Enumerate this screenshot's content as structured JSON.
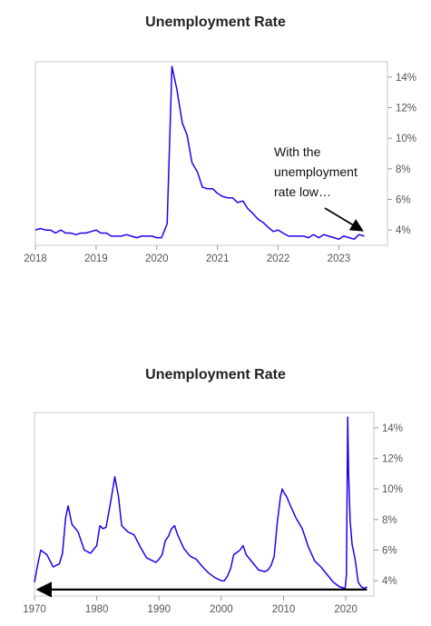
{
  "chart_data": [
    {
      "type": "line",
      "title": "Unemployment Rate",
      "xlabel": "",
      "ylabel": "",
      "x_ticks": [
        "2018",
        "2019",
        "2020",
        "2021",
        "2022",
        "2023"
      ],
      "y_ticks": [
        "4%",
        "6%",
        "8%",
        "10%",
        "12%",
        "14%"
      ],
      "xlim": [
        2018.0,
        2023.8
      ],
      "ylim": [
        3.0,
        15.0
      ],
      "grid": false,
      "line_color": "#2200ee",
      "annotation": {
        "lines": [
          "With the",
          "unemployment",
          "rate low…"
        ],
        "arrow_to": [
          2023.42,
          3.6
        ]
      },
      "series": [
        {
          "x": [
            2018.0,
            2018.08,
            2018.17,
            2018.25,
            2018.33,
            2018.42,
            2018.5,
            2018.58,
            2018.67,
            2018.75,
            2018.83,
            2018.92,
            2019.0,
            2019.08,
            2019.17,
            2019.25,
            2019.33,
            2019.42,
            2019.5,
            2019.58,
            2019.67,
            2019.75,
            2019.83,
            2019.92,
            2020.0,
            2020.08,
            2020.17,
            2020.25,
            2020.33,
            2020.42,
            2020.5,
            2020.58,
            2020.67,
            2020.75,
            2020.83,
            2020.92,
            2021.0,
            2021.08,
            2021.17,
            2021.25,
            2021.33,
            2021.42,
            2021.5,
            2021.58,
            2021.67,
            2021.75,
            2021.83,
            2021.92,
            2022.0,
            2022.08,
            2022.17,
            2022.25,
            2022.33,
            2022.42,
            2022.5,
            2022.58,
            2022.67,
            2022.75,
            2022.83,
            2022.92,
            2023.0,
            2023.08,
            2023.17,
            2023.25,
            2023.33,
            2023.42
          ],
          "values": [
            4.0,
            4.1,
            4.0,
            4.0,
            3.8,
            4.0,
            3.8,
            3.8,
            3.7,
            3.8,
            3.8,
            3.9,
            4.0,
            3.8,
            3.8,
            3.6,
            3.6,
            3.6,
            3.7,
            3.6,
            3.5,
            3.6,
            3.6,
            3.6,
            3.5,
            3.5,
            4.4,
            14.7,
            13.2,
            11.0,
            10.2,
            8.4,
            7.8,
            6.8,
            6.7,
            6.7,
            6.4,
            6.2,
            6.1,
            6.1,
            5.8,
            5.9,
            5.4,
            5.1,
            4.7,
            4.5,
            4.2,
            3.9,
            4.0,
            3.8,
            3.6,
            3.6,
            3.6,
            3.6,
            3.5,
            3.7,
            3.5,
            3.7,
            3.6,
            3.5,
            3.4,
            3.6,
            3.5,
            3.4,
            3.7,
            3.6
          ]
        }
      ]
    },
    {
      "type": "line",
      "title": "Unemployment Rate",
      "xlabel": "",
      "ylabel": "",
      "x_ticks": [
        "1970",
        "1980",
        "1990",
        "2000",
        "2010",
        "2020"
      ],
      "y_ticks": [
        "4%",
        "6%",
        "8%",
        "10%",
        "12%",
        "14%"
      ],
      "xlim": [
        1970.0,
        2024.5
      ],
      "ylim": [
        3.0,
        15.0
      ],
      "grid": false,
      "line_color": "#2200ee",
      "annotation": {
        "lines": [],
        "arrow_from": [
          2023.4,
          3.6
        ],
        "arrow_to": [
          1970.2,
          3.6
        ]
      },
      "series": [
        {
          "x": [
            1970.0,
            1970.5,
            1971.0,
            1972.0,
            1973.0,
            1974.0,
            1974.5,
            1975.0,
            1975.4,
            1976.0,
            1977.0,
            1978.0,
            1979.0,
            1980.0,
            1980.5,
            1981.0,
            1981.5,
            1982.0,
            1982.5,
            1982.9,
            1983.5,
            1984.0,
            1985.0,
            1986.0,
            1987.0,
            1988.0,
            1989.0,
            1989.5,
            1990.0,
            1990.5,
            1991.0,
            1991.5,
            1992.0,
            1992.5,
            1993.0,
            1994.0,
            1995.0,
            1996.0,
            1997.0,
            1998.0,
            1999.0,
            2000.0,
            2000.5,
            2001.0,
            2001.5,
            2002.0,
            2003.0,
            2003.5,
            2004.0,
            2005.0,
            2006.0,
            2007.0,
            2007.5,
            2008.0,
            2008.5,
            2009.0,
            2009.5,
            2009.8,
            2010.0,
            2010.5,
            2011.0,
            2012.0,
            2013.0,
            2014.0,
            2015.0,
            2016.0,
            2017.0,
            2018.0,
            2019.0,
            2019.9,
            2020.1,
            2020.3,
            2020.45,
            2020.7,
            2021.0,
            2021.5,
            2022.0,
            2022.5,
            2023.0,
            2023.4
          ],
          "values": [
            3.9,
            5.0,
            6.0,
            5.7,
            4.9,
            5.1,
            5.8,
            8.1,
            8.9,
            7.7,
            7.2,
            6.0,
            5.8,
            6.3,
            7.6,
            7.4,
            7.5,
            8.6,
            9.8,
            10.8,
            9.5,
            7.6,
            7.2,
            7.0,
            6.2,
            5.5,
            5.3,
            5.2,
            5.4,
            5.7,
            6.6,
            6.9,
            7.4,
            7.6,
            7.0,
            6.1,
            5.6,
            5.4,
            4.9,
            4.5,
            4.2,
            4.0,
            4.0,
            4.3,
            4.8,
            5.7,
            6.0,
            6.3,
            5.7,
            5.2,
            4.7,
            4.6,
            4.7,
            5.0,
            5.6,
            7.8,
            9.5,
            10.0,
            9.8,
            9.5,
            9.0,
            8.1,
            7.4,
            6.2,
            5.3,
            4.9,
            4.4,
            3.9,
            3.6,
            3.5,
            4.4,
            14.7,
            11.0,
            7.9,
            6.4,
            5.4,
            3.9,
            3.6,
            3.5,
            3.6
          ]
        }
      ]
    }
  ]
}
